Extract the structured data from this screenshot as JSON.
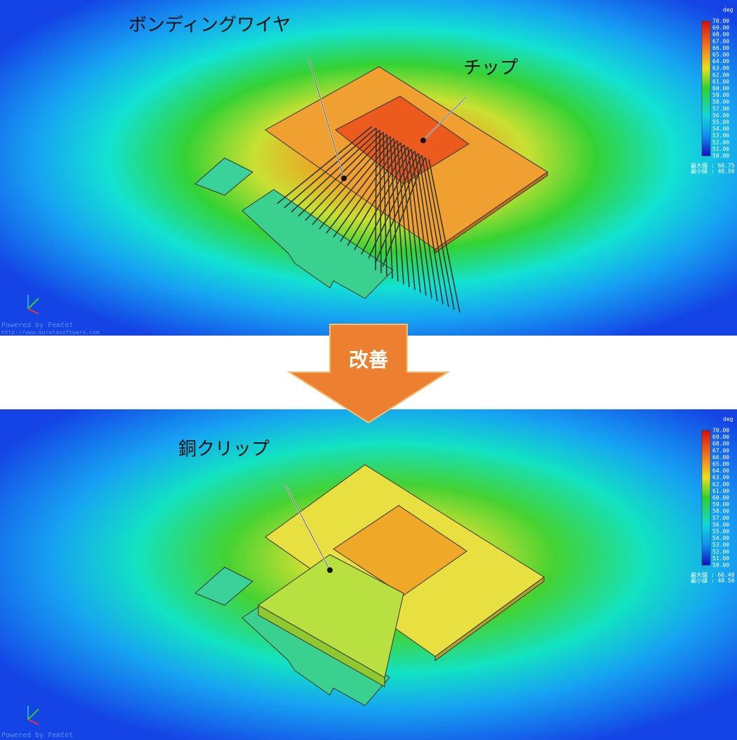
{
  "top_panel": {
    "labels": {
      "wire": "ボンディングワイヤ",
      "chip": "チップ"
    },
    "legend": {
      "unit": "deg",
      "ticks": [
        "70.00",
        "69.00",
        "68.00",
        "67.00",
        "66.00",
        "65.00",
        "64.00",
        "63.00",
        "62.00",
        "61.00",
        "60.00",
        "59.00",
        "58.00",
        "57.00",
        "56.00",
        "55.00",
        "54.00",
        "53.00",
        "52.00",
        "51.00",
        "50.00"
      ],
      "max": "最大値 : 68.75",
      "min": "最小値 : 48.50"
    },
    "footer": {
      "powered": "Powered by Femtet",
      "url": "http://www.muratasoftware.com"
    }
  },
  "arrow": {
    "label": "改善"
  },
  "bottom_panel": {
    "labels": {
      "clip": "銅クリップ"
    },
    "legend": {
      "unit": "deg",
      "ticks": [
        "70.00",
        "69.00",
        "68.00",
        "67.00",
        "66.00",
        "65.00",
        "64.00",
        "63.00",
        "62.00",
        "61.00",
        "60.00",
        "59.00",
        "58.00",
        "57.00",
        "56.00",
        "55.00",
        "54.00",
        "53.00",
        "52.00",
        "51.00",
        "50.00"
      ],
      "max": "最大値 : 66.40",
      "min": "最小値 : 48.50"
    },
    "footer": {
      "powered": "Powered by Femtet"
    }
  }
}
